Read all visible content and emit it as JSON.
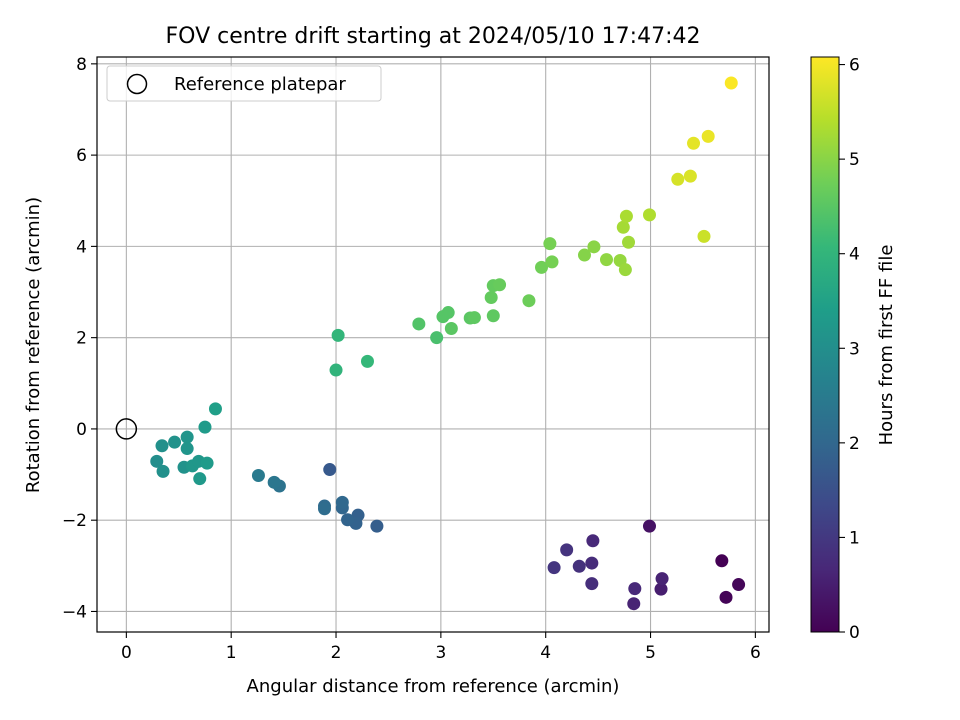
{
  "chart_data": {
    "type": "scatter",
    "title": "FOV centre drift starting at 2024/05/10 17:47:42",
    "xlabel": "Angular distance from reference (arcmin)",
    "ylabel": "Rotation from reference (arcmin)",
    "xlim": [
      -0.28,
      6.13
    ],
    "ylim": [
      -4.45,
      8.15
    ],
    "xticks": [
      0,
      1,
      2,
      3,
      4,
      5,
      6
    ],
    "yticks": [
      -4,
      -2,
      0,
      2,
      4,
      6,
      8
    ],
    "xtick_labels": [
      "0",
      "1",
      "2",
      "3",
      "4",
      "5",
      "6"
    ],
    "ytick_labels": [
      "−4",
      "−2",
      "0",
      "2",
      "4",
      "6",
      "8"
    ],
    "grid": true,
    "legend": {
      "placement": "top-left",
      "label": "Reference platepar"
    },
    "reference_point": {
      "x": 0,
      "y": 0
    },
    "colorbar": {
      "label": "Hours from first FF file",
      "colormap": "viridis",
      "range": [
        0,
        6.08
      ],
      "ticks": [
        0,
        1,
        2,
        3,
        4,
        5,
        6
      ],
      "tick_labels": [
        "0",
        "1",
        "2",
        "3",
        "4",
        "5",
        "6"
      ]
    },
    "points": [
      {
        "x": 5.68,
        "y": -2.89,
        "hours": 0.0
      },
      {
        "x": 5.72,
        "y": -3.69,
        "hours": 0.05
      },
      {
        "x": 5.84,
        "y": -3.41,
        "hours": 0.1
      },
      {
        "x": 4.99,
        "y": -2.13,
        "hours": 0.3
      },
      {
        "x": 5.1,
        "y": -3.51,
        "hours": 0.5
      },
      {
        "x": 5.11,
        "y": -3.28,
        "hours": 0.6
      },
      {
        "x": 4.84,
        "y": -3.83,
        "hours": 0.6
      },
      {
        "x": 4.85,
        "y": -3.5,
        "hours": 0.7
      },
      {
        "x": 4.45,
        "y": -2.45,
        "hours": 0.7
      },
      {
        "x": 4.44,
        "y": -2.94,
        "hours": 0.75
      },
      {
        "x": 4.44,
        "y": -3.39,
        "hours": 0.8
      },
      {
        "x": 4.32,
        "y": -3.01,
        "hours": 0.85
      },
      {
        "x": 4.2,
        "y": -2.65,
        "hours": 0.9
      },
      {
        "x": 4.08,
        "y": -3.04,
        "hours": 0.95
      },
      {
        "x": 1.94,
        "y": -0.89,
        "hours": 1.7
      },
      {
        "x": 2.39,
        "y": -2.13,
        "hours": 1.8
      },
      {
        "x": 2.21,
        "y": -1.89,
        "hours": 1.85
      },
      {
        "x": 2.19,
        "y": -2.07,
        "hours": 1.9
      },
      {
        "x": 2.11,
        "y": -1.99,
        "hours": 1.95
      },
      {
        "x": 2.06,
        "y": -1.73,
        "hours": 2.0
      },
      {
        "x": 2.06,
        "y": -1.61,
        "hours": 2.05
      },
      {
        "x": 1.89,
        "y": -1.69,
        "hours": 2.1
      },
      {
        "x": 1.89,
        "y": -1.75,
        "hours": 2.15
      },
      {
        "x": 1.46,
        "y": -1.25,
        "hours": 2.3
      },
      {
        "x": 1.41,
        "y": -1.17,
        "hours": 2.4
      },
      {
        "x": 1.26,
        "y": -1.02,
        "hours": 2.5
      },
      {
        "x": 0.29,
        "y": -0.71,
        "hours": 3.0
      },
      {
        "x": 0.34,
        "y": -0.37,
        "hours": 3.05
      },
      {
        "x": 0.35,
        "y": -0.93,
        "hours": 3.05
      },
      {
        "x": 0.46,
        "y": -0.29,
        "hours": 3.1
      },
      {
        "x": 0.55,
        "y": -0.84,
        "hours": 3.1
      },
      {
        "x": 0.58,
        "y": -0.18,
        "hours": 3.15
      },
      {
        "x": 0.58,
        "y": -0.43,
        "hours": 3.15
      },
      {
        "x": 0.63,
        "y": -0.81,
        "hours": 3.2
      },
      {
        "x": 0.69,
        "y": -0.71,
        "hours": 3.2
      },
      {
        "x": 0.7,
        "y": -1.09,
        "hours": 3.25
      },
      {
        "x": 0.77,
        "y": -0.75,
        "hours": 3.3
      },
      {
        "x": 0.75,
        "y": 0.04,
        "hours": 3.3
      },
      {
        "x": 0.85,
        "y": 0.44,
        "hours": 3.4
      },
      {
        "x": 2.0,
        "y": 1.29,
        "hours": 3.95
      },
      {
        "x": 2.02,
        "y": 2.05,
        "hours": 4.0
      },
      {
        "x": 2.3,
        "y": 1.48,
        "hours": 4.05
      },
      {
        "x": 2.96,
        "y": 2.0,
        "hours": 4.3
      },
      {
        "x": 2.79,
        "y": 2.3,
        "hours": 4.4
      },
      {
        "x": 3.02,
        "y": 2.46,
        "hours": 4.45
      },
      {
        "x": 3.07,
        "y": 2.55,
        "hours": 4.45
      },
      {
        "x": 3.1,
        "y": 2.2,
        "hours": 4.5
      },
      {
        "x": 3.28,
        "y": 2.43,
        "hours": 4.5
      },
      {
        "x": 3.32,
        "y": 2.44,
        "hours": 4.55
      },
      {
        "x": 3.5,
        "y": 2.48,
        "hours": 4.55
      },
      {
        "x": 3.48,
        "y": 2.88,
        "hours": 4.6
      },
      {
        "x": 3.5,
        "y": 3.14,
        "hours": 4.6
      },
      {
        "x": 3.56,
        "y": 3.16,
        "hours": 4.65
      },
      {
        "x": 3.84,
        "y": 2.81,
        "hours": 4.7
      },
      {
        "x": 3.96,
        "y": 3.54,
        "hours": 4.75
      },
      {
        "x": 4.06,
        "y": 3.66,
        "hours": 4.8
      },
      {
        "x": 4.04,
        "y": 4.06,
        "hours": 4.8
      },
      {
        "x": 4.37,
        "y": 3.81,
        "hours": 4.95
      },
      {
        "x": 4.46,
        "y": 3.99,
        "hours": 5.0
      },
      {
        "x": 4.58,
        "y": 3.71,
        "hours": 5.05
      },
      {
        "x": 4.71,
        "y": 3.69,
        "hours": 5.1
      },
      {
        "x": 4.76,
        "y": 3.49,
        "hours": 5.15
      },
      {
        "x": 4.79,
        "y": 4.09,
        "hours": 5.2
      },
      {
        "x": 4.74,
        "y": 4.42,
        "hours": 5.25
      },
      {
        "x": 4.77,
        "y": 4.66,
        "hours": 5.3
      },
      {
        "x": 4.99,
        "y": 4.69,
        "hours": 5.35
      },
      {
        "x": 5.51,
        "y": 4.22,
        "hours": 5.6
      },
      {
        "x": 5.26,
        "y": 5.47,
        "hours": 5.7
      },
      {
        "x": 5.38,
        "y": 5.54,
        "hours": 5.75
      },
      {
        "x": 5.41,
        "y": 6.26,
        "hours": 5.85
      },
      {
        "x": 5.55,
        "y": 6.41,
        "hours": 5.9
      },
      {
        "x": 5.77,
        "y": 7.58,
        "hours": 6.05
      }
    ]
  }
}
